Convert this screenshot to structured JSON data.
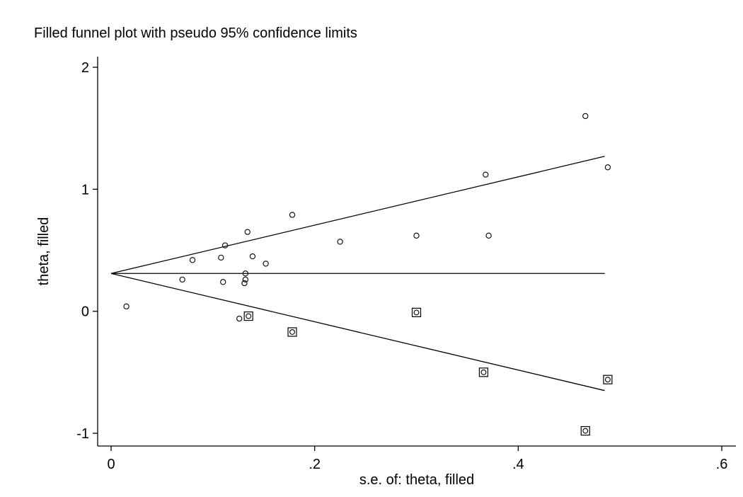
{
  "chart_data": {
    "type": "scatter",
    "title": "Filled funnel plot with pseudo 95% confidence limits",
    "xlabel": "s.e. of: theta, filled",
    "ylabel": "theta, filled",
    "xlim": [
      0,
      0.6
    ],
    "ylim": [
      -1,
      2
    ],
    "x_ticks": [
      {
        "value": 0,
        "label": "0"
      },
      {
        "value": 0.2,
        "label": ".2"
      },
      {
        "value": 0.4,
        "label": ".4"
      },
      {
        "value": 0.6,
        "label": ".6"
      }
    ],
    "y_ticks": [
      {
        "value": -1,
        "label": "-1"
      },
      {
        "value": 0,
        "label": "0"
      },
      {
        "value": 1,
        "label": "1"
      },
      {
        "value": 2,
        "label": "2"
      }
    ],
    "grid": false,
    "pooled_estimate": 0.31,
    "funnel": {
      "se_max": 0.485,
      "upper_end": 1.27,
      "lower_end": -0.65
    },
    "series": [
      {
        "marker": "circle",
        "points": [
          {
            "x": 0.015,
            "y": 0.04
          },
          {
            "x": 0.07,
            "y": 0.26
          },
          {
            "x": 0.08,
            "y": 0.42
          },
          {
            "x": 0.108,
            "y": 0.44
          },
          {
            "x": 0.11,
            "y": 0.24
          },
          {
            "x": 0.112,
            "y": 0.54
          },
          {
            "x": 0.126,
            "y": -0.06
          },
          {
            "x": 0.131,
            "y": 0.23
          },
          {
            "x": 0.132,
            "y": 0.26
          },
          {
            "x": 0.132,
            "y": 0.31
          },
          {
            "x": 0.134,
            "y": 0.65
          },
          {
            "x": 0.139,
            "y": 0.45
          },
          {
            "x": 0.152,
            "y": 0.39
          },
          {
            "x": 0.178,
            "y": 0.79
          },
          {
            "x": 0.225,
            "y": 0.57
          },
          {
            "x": 0.3,
            "y": 0.62
          },
          {
            "x": 0.368,
            "y": 1.12
          },
          {
            "x": 0.371,
            "y": 0.62
          },
          {
            "x": 0.466,
            "y": 1.6
          },
          {
            "x": 0.488,
            "y": 1.18
          }
        ]
      },
      {
        "marker": "boxed-circle",
        "points": [
          {
            "x": 0.135,
            "y": -0.04
          },
          {
            "x": 0.178,
            "y": -0.17
          },
          {
            "x": 0.3,
            "y": -0.01
          },
          {
            "x": 0.366,
            "y": -0.5
          },
          {
            "x": 0.466,
            "y": -0.98
          },
          {
            "x": 0.488,
            "y": -0.56
          }
        ]
      }
    ]
  }
}
